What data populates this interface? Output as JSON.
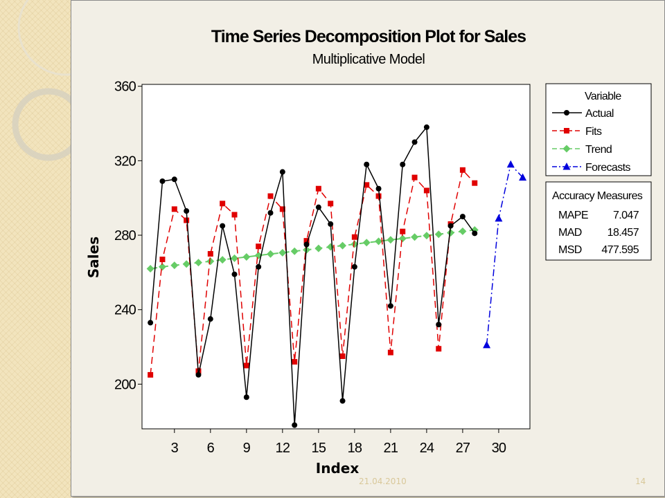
{
  "slide": {
    "date": "21.04.2010",
    "page_number": "14"
  },
  "chart_data": {
    "type": "line",
    "title": "Time Series Decomposition Plot for Sales",
    "subtitle": "Multiplicative Model",
    "xlabel": "Index",
    "ylabel": "Sales",
    "xlim": [
      0.3,
      32.6
    ],
    "ylim": [
      176,
      361
    ],
    "xticks": [
      3,
      6,
      9,
      12,
      15,
      18,
      21,
      24,
      27,
      30
    ],
    "yticks": [
      200,
      240,
      280,
      320,
      360
    ],
    "legend_title": "Variable",
    "legend_position": "right",
    "series": [
      {
        "name": "Actual",
        "color": "#000000",
        "marker": "circle",
        "line": "solid",
        "x": [
          1,
          2,
          3,
          4,
          5,
          6,
          7,
          8,
          9,
          10,
          11,
          12,
          13,
          14,
          15,
          16,
          17,
          18,
          19,
          20,
          21,
          22,
          23,
          24,
          25,
          26,
          27,
          28
        ],
        "values": [
          233,
          309,
          310,
          293,
          205,
          235,
          285,
          259,
          193,
          263,
          292,
          314,
          178,
          275,
          295,
          286,
          191,
          263,
          318,
          305,
          242,
          318,
          330,
          338,
          232,
          285,
          290,
          281
        ]
      },
      {
        "name": "Fits",
        "color": "#e00000",
        "marker": "square",
        "line": "dashed",
        "x": [
          1,
          2,
          3,
          4,
          5,
          6,
          7,
          8,
          9,
          10,
          11,
          12,
          13,
          14,
          15,
          16,
          17,
          18,
          19,
          20,
          21,
          22,
          23,
          24,
          25,
          26,
          27,
          28
        ],
        "values": [
          205,
          267,
          294,
          288,
          207,
          270,
          297,
          291,
          210,
          274,
          301,
          294,
          212,
          277,
          305,
          297,
          215,
          279,
          307,
          301,
          217,
          282,
          311,
          304,
          219,
          286,
          315,
          308
        ]
      },
      {
        "name": "Trend",
        "color": "#66cc66",
        "marker": "diamond",
        "line": "dashed",
        "x": [
          1,
          2,
          3,
          4,
          5,
          6,
          7,
          8,
          9,
          10,
          11,
          12,
          13,
          14,
          15,
          16,
          17,
          18,
          19,
          20,
          21,
          22,
          23,
          24,
          25,
          26,
          27,
          28
        ],
        "values": [
          262,
          263,
          263.8,
          264.5,
          265.3,
          266,
          266.8,
          267.6,
          268.3,
          269.1,
          269.9,
          270.6,
          271.4,
          272.1,
          272.9,
          273.7,
          274.4,
          275.2,
          276,
          276.7,
          277.5,
          278.2,
          279,
          279.8,
          280.5,
          281.3,
          282.1,
          282.8
        ]
      },
      {
        "name": "Forecasts",
        "color": "#0000dd",
        "marker": "triangle",
        "line": "dashdot",
        "x": [
          29,
          30,
          31,
          32
        ],
        "values": [
          221,
          289,
          318,
          311
        ]
      }
    ],
    "accuracy_measures": {
      "title": "Accuracy Measures",
      "rows": [
        {
          "label": "MAPE",
          "value": "7.047"
        },
        {
          "label": "MAD",
          "value": "18.457"
        },
        {
          "label": "MSD",
          "value": "477.595"
        }
      ]
    }
  }
}
